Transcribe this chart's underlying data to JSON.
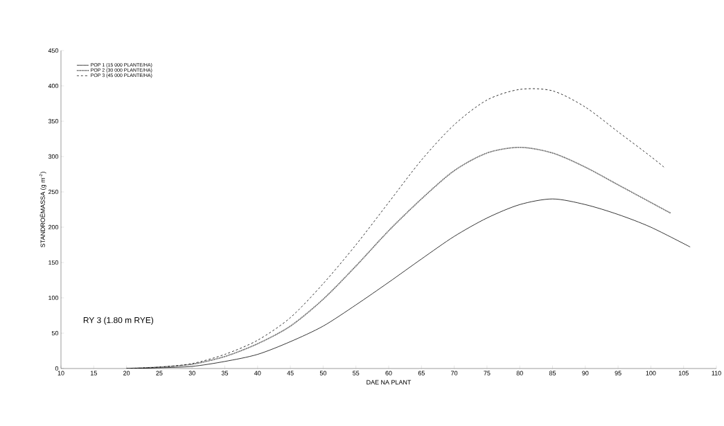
{
  "chart_data": {
    "type": "line",
    "xlabel": "DAE NA PLANT",
    "ylabel": "STANDROËMASSA (g m$^{-2}$)",
    "annotations": [
      "RY 3 (1.80 m RYE)"
    ],
    "xlim": [
      10,
      110
    ],
    "xticks": [
      10,
      15,
      20,
      25,
      30,
      35,
      40,
      45,
      50,
      55,
      60,
      65,
      70,
      75,
      80,
      85,
      90,
      95,
      100,
      105,
      110
    ],
    "ylim": [
      0,
      450
    ],
    "yticks": [
      0,
      50,
      100,
      150,
      200,
      250,
      300,
      350,
      400,
      450
    ],
    "grid": false,
    "legend": "top left",
    "marker": "none",
    "series": [
      {
        "name": "POP 1 (15 000 PLANTE/HA)",
        "color": "#000000",
        "line_style": "solid",
        "x": [
          20,
          25,
          30,
          35,
          40,
          45,
          50,
          55,
          60,
          65,
          70,
          75,
          80,
          85,
          90,
          95,
          100,
          106
        ],
        "values": [
          0,
          1,
          3,
          10,
          20,
          38,
          60,
          90,
          122,
          155,
          187,
          213,
          232,
          240,
          232,
          218,
          200,
          172
        ]
      },
      {
        "name": "POP 2 (30 000 PLANTE/HA)",
        "color": "#000000",
        "line_style": "dotted",
        "x": [
          20,
          25,
          30,
          35,
          40,
          45,
          50,
          55,
          60,
          65,
          70,
          75,
          80,
          85,
          90,
          95,
          100,
          103
        ],
        "values": [
          0,
          2,
          6,
          17,
          35,
          60,
          98,
          145,
          195,
          240,
          280,
          305,
          313,
          305,
          285,
          260,
          235,
          220
        ]
      },
      {
        "name": "POP 3 (45 000 PLANTE/HA)",
        "color": "#000000",
        "line_style": "dashed",
        "x": [
          20,
          25,
          30,
          35,
          40,
          45,
          50,
          55,
          60,
          65,
          70,
          75,
          80,
          85,
          90,
          95,
          100,
          102
        ],
        "values": [
          0,
          2,
          7,
          20,
          40,
          72,
          120,
          175,
          235,
          295,
          345,
          380,
          395,
          393,
          370,
          335,
          300,
          285
        ]
      }
    ]
  }
}
